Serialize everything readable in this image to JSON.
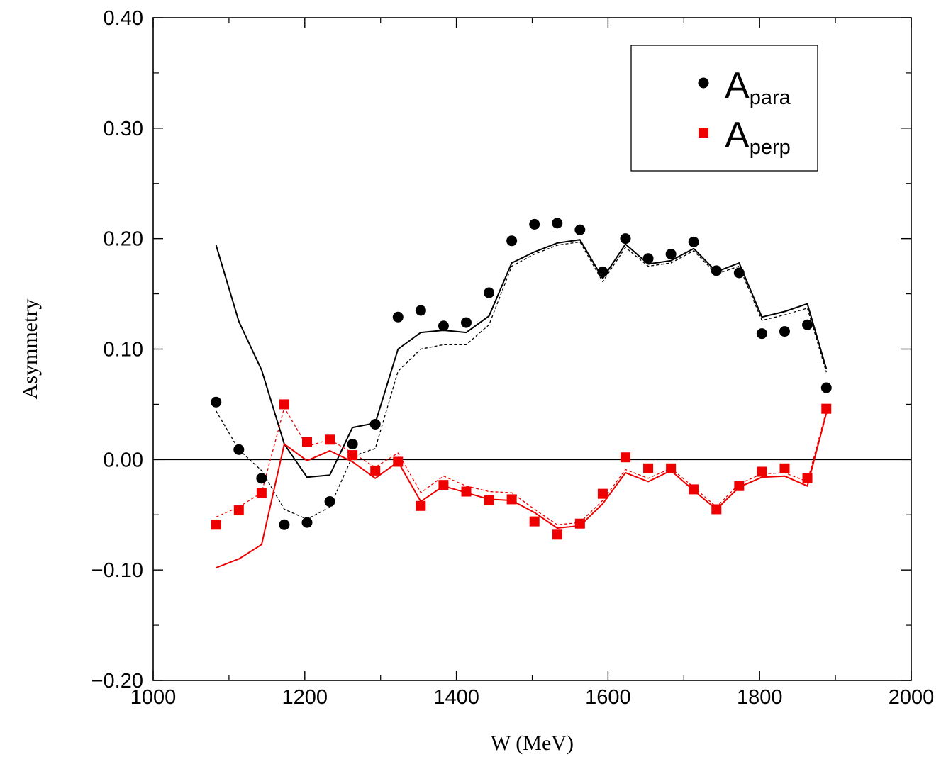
{
  "chart_data": {
    "type": "scatter",
    "xlabel": "W (MeV)",
    "ylabel": "Asymmetry",
    "xlim": [
      1000,
      2000
    ],
    "ylim": [
      -0.2,
      0.4
    ],
    "x_ticks": [
      1000,
      1200,
      1400,
      1600,
      1800,
      2000
    ],
    "x_tick_labels": [
      "1000",
      "1200",
      "1400",
      "1600",
      "1800",
      "2000"
    ],
    "y_ticks": [
      -0.2,
      -0.1,
      0.0,
      0.1,
      0.2,
      0.3,
      0.4
    ],
    "y_tick_labels": [
      "−0.20",
      "−0.10",
      "0.00",
      "0.10",
      "0.20",
      "0.30",
      "0.40"
    ],
    "grid": false,
    "zero_line": true,
    "legend": {
      "placement": "top-right",
      "entries": [
        {
          "base": "A",
          "sub": "para",
          "series": "A_para"
        },
        {
          "base": "A",
          "sub": "perp",
          "series": "A_perp"
        }
      ]
    },
    "colors": {
      "para": "#000000",
      "perp": "#ee0000"
    },
    "series": [
      {
        "id": "A_para",
        "kind": "points",
        "marker": "circle",
        "color": "#000000",
        "x": [
          1083,
          1113,
          1143,
          1173,
          1203,
          1233,
          1263,
          1293,
          1323,
          1353,
          1383,
          1413,
          1443,
          1473,
          1503,
          1533,
          1563,
          1593,
          1623,
          1653,
          1683,
          1713,
          1743,
          1773,
          1803,
          1833,
          1863,
          1888
        ],
        "y": [
          0.052,
          0.009,
          -0.017,
          -0.059,
          -0.057,
          -0.038,
          0.014,
          0.032,
          0.129,
          0.135,
          0.121,
          0.124,
          0.151,
          0.198,
          0.213,
          0.214,
          0.208,
          0.17,
          0.2,
          0.182,
          0.186,
          0.197,
          0.171,
          0.169,
          0.114,
          0.116,
          0.122,
          0.065
        ]
      },
      {
        "id": "A_perp",
        "kind": "points",
        "marker": "square",
        "color": "#ee0000",
        "x": [
          1083,
          1113,
          1143,
          1173,
          1203,
          1233,
          1263,
          1293,
          1323,
          1353,
          1383,
          1413,
          1443,
          1473,
          1503,
          1533,
          1563,
          1593,
          1623,
          1653,
          1683,
          1713,
          1743,
          1773,
          1803,
          1833,
          1863,
          1888
        ],
        "y": [
          -0.059,
          -0.046,
          -0.03,
          0.05,
          0.016,
          0.018,
          0.004,
          -0.01,
          -0.002,
          -0.042,
          -0.023,
          -0.029,
          -0.037,
          -0.036,
          -0.056,
          -0.068,
          -0.058,
          -0.031,
          0.002,
          -0.008,
          -0.008,
          -0.027,
          -0.045,
          -0.024,
          -0.011,
          -0.008,
          -0.017,
          0.046
        ]
      },
      {
        "id": "para_model_solid",
        "kind": "line",
        "style": "solid",
        "color": "#000000",
        "x": [
          1083,
          1113,
          1143,
          1173,
          1203,
          1233,
          1263,
          1293,
          1323,
          1353,
          1383,
          1413,
          1443,
          1473,
          1503,
          1533,
          1563,
          1593,
          1623,
          1653,
          1683,
          1713,
          1743,
          1773,
          1803,
          1833,
          1863,
          1888
        ],
        "y": [
          0.194,
          0.125,
          0.081,
          0.014,
          -0.016,
          -0.014,
          0.029,
          0.033,
          0.1,
          0.115,
          0.117,
          0.115,
          0.13,
          0.178,
          0.188,
          0.196,
          0.199,
          0.164,
          0.195,
          0.177,
          0.18,
          0.191,
          0.17,
          0.178,
          0.129,
          0.134,
          0.141,
          0.082
        ]
      },
      {
        "id": "para_model_dashed",
        "kind": "line",
        "style": "dashed",
        "color": "#000000",
        "x": [
          1083,
          1113,
          1143,
          1173,
          1203,
          1233,
          1263,
          1293,
          1323,
          1353,
          1383,
          1413,
          1443,
          1473,
          1503,
          1533,
          1563,
          1593,
          1623,
          1653,
          1683,
          1713,
          1743,
          1773,
          1803,
          1833,
          1863,
          1888
        ],
        "y": [
          0.044,
          0.009,
          -0.01,
          -0.045,
          -0.054,
          -0.043,
          0.003,
          0.01,
          0.08,
          0.1,
          0.104,
          0.104,
          0.122,
          0.175,
          0.186,
          0.194,
          0.197,
          0.161,
          0.192,
          0.175,
          0.178,
          0.189,
          0.168,
          0.175,
          0.126,
          0.131,
          0.137,
          0.079
        ]
      },
      {
        "id": "perp_model_solid",
        "kind": "line",
        "style": "solid",
        "color": "#ee0000",
        "x": [
          1083,
          1113,
          1143,
          1173,
          1203,
          1233,
          1263,
          1293,
          1323,
          1353,
          1383,
          1413,
          1443,
          1473,
          1503,
          1533,
          1563,
          1593,
          1623,
          1653,
          1683,
          1713,
          1743,
          1773,
          1803,
          1833,
          1863,
          1888
        ],
        "y": [
          -0.098,
          -0.09,
          -0.077,
          0.014,
          -0.001,
          0.008,
          -0.002,
          -0.017,
          -0.002,
          -0.038,
          -0.024,
          -0.03,
          -0.036,
          -0.037,
          -0.048,
          -0.062,
          -0.06,
          -0.04,
          -0.012,
          -0.02,
          -0.01,
          -0.028,
          -0.045,
          -0.025,
          -0.016,
          -0.015,
          -0.024,
          0.042
        ]
      },
      {
        "id": "perp_model_dashed",
        "kind": "line",
        "style": "dashed",
        "color": "#ee0000",
        "x": [
          1083,
          1113,
          1143,
          1173,
          1203,
          1233,
          1263,
          1293,
          1323,
          1353,
          1383,
          1413,
          1443,
          1473,
          1503,
          1533,
          1563,
          1593,
          1623,
          1653,
          1683,
          1713,
          1743,
          1773,
          1803,
          1833,
          1863,
          1888
        ],
        "y": [
          -0.052,
          -0.043,
          -0.03,
          0.047,
          0.012,
          0.018,
          0.006,
          -0.007,
          0.006,
          -0.03,
          -0.015,
          -0.024,
          -0.029,
          -0.03,
          -0.045,
          -0.059,
          -0.057,
          -0.037,
          -0.009,
          -0.017,
          -0.008,
          -0.025,
          -0.043,
          -0.022,
          -0.013,
          -0.012,
          -0.02,
          0.044
        ]
      }
    ]
  }
}
